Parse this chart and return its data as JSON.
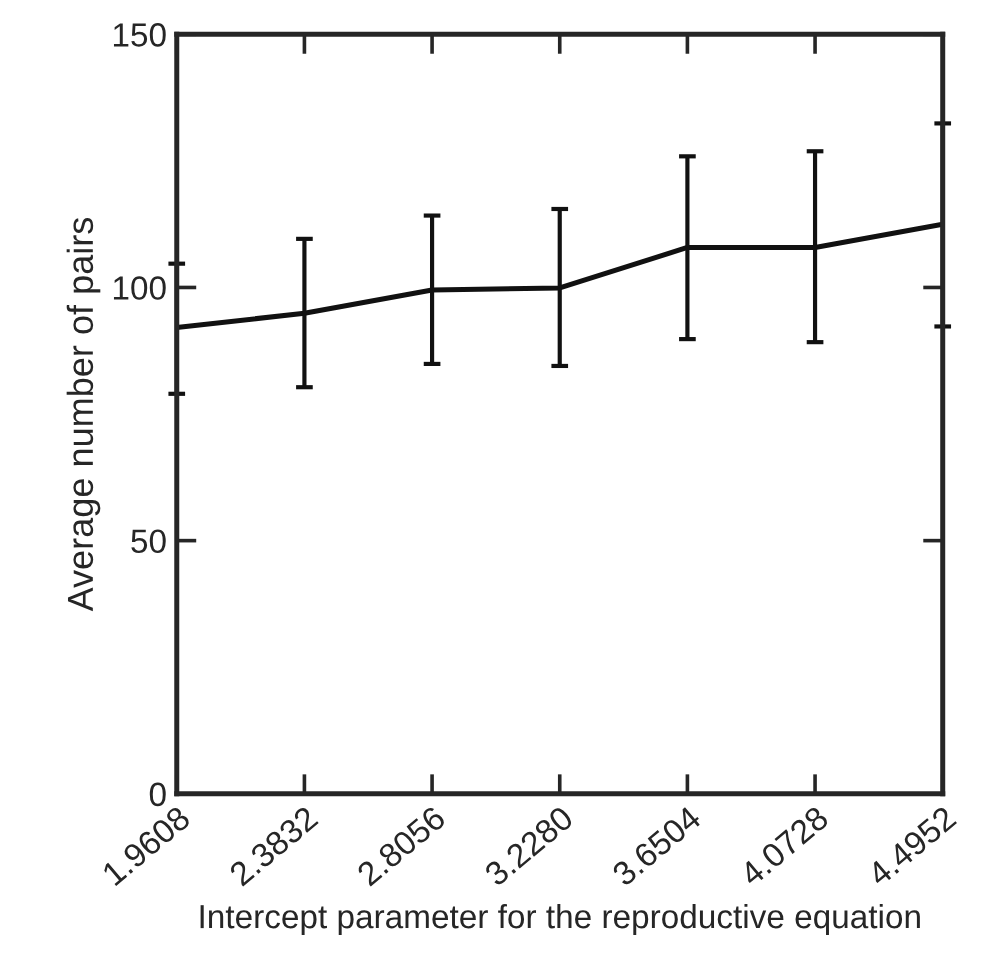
{
  "chart_data": {
    "type": "line",
    "xlabel": "Intercept parameter for the reproductive equation",
    "ylabel": "Average number of pairs",
    "x": [
      1.9608,
      2.3832,
      2.8056,
      3.228,
      3.6504,
      4.0728,
      4.4952
    ],
    "series": [
      {
        "color": "#111111",
        "values": [
          92.1,
          94.9,
          99.5,
          99.9,
          107.9,
          107.9,
          112.5
        ],
        "errors": [
          [
            79,
            104.7
          ],
          [
            80.3,
            109.6
          ],
          [
            84.9,
            114.2
          ],
          [
            84.5,
            115.5
          ],
          [
            89.8,
            125.9
          ],
          [
            89.2,
            126.9
          ],
          [
            92.3,
            132.4
          ]
        ]
      }
    ],
    "xlim": [
      1.9608,
      4.4952
    ],
    "xticks": [
      {
        "value": 1.9608,
        "label": "1.9608"
      },
      {
        "value": 2.3832,
        "label": "2.3832"
      },
      {
        "value": 2.8056,
        "label": "2.8056"
      },
      {
        "value": 3.228,
        "label": "3.2280"
      },
      {
        "value": 3.6504,
        "label": "3.6504"
      },
      {
        "value": 4.0728,
        "label": "4.0728"
      },
      {
        "value": 4.4952,
        "label": "4.4952"
      }
    ],
    "ylim": [
      0,
      150
    ],
    "yticks": [
      0,
      50,
      100,
      150
    ],
    "grid": false,
    "legend": false,
    "marker": "none",
    "line_style": "solid"
  }
}
